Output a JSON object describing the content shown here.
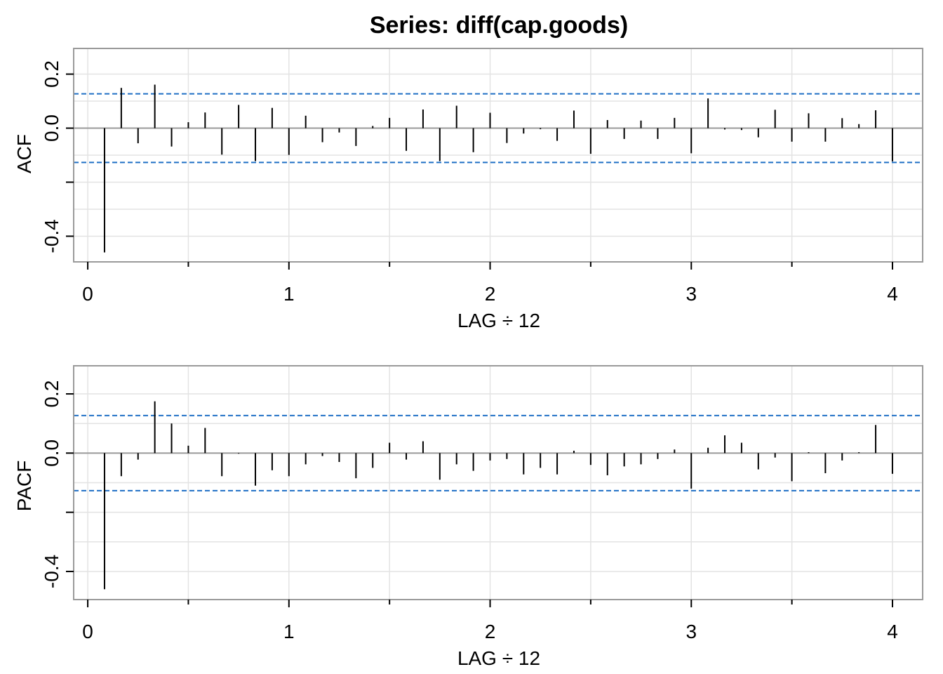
{
  "title": "Series:  diff(cap.goods)",
  "colors": {
    "bar": "#000000",
    "ci": "#1f6fc5",
    "grid": "#e3e3e3",
    "frame": "#9a9a9a",
    "zero": "#9a9a9a"
  },
  "chart_data": [
    {
      "type": "bar",
      "name": "acf-panel",
      "xlabel": "LAG ÷ 12",
      "ylabel": "ACF",
      "xlim": [
        -0.07,
        4.15
      ],
      "ylim": [
        -0.495,
        0.295
      ],
      "x_ticks": [
        0,
        1,
        2,
        3,
        4
      ],
      "x_tick_labels": [
        "0",
        "1",
        "2",
        "3",
        "4"
      ],
      "x_minor_ticks": [
        0.5,
        1.5,
        2.5,
        3.5
      ],
      "y_ticks": [
        -0.4,
        -0.2,
        0.0,
        0.2
      ],
      "y_tick_labels": [
        "-0.4",
        "",
        "0.0",
        "0.2"
      ],
      "y_grid": [
        -0.4,
        -0.3,
        -0.2,
        -0.1,
        0.0,
        0.1,
        0.2
      ],
      "x_grid": [
        0,
        0.5,
        1,
        1.5,
        2,
        2.5,
        3,
        3.5,
        4
      ],
      "ci": 0.127,
      "lag_step": 0.08333,
      "values": [
        -0.46,
        0.149,
        -0.056,
        0.161,
        -0.068,
        0.022,
        0.058,
        -0.098,
        0.086,
        -0.122,
        0.075,
        -0.099,
        0.046,
        -0.052,
        -0.016,
        -0.066,
        0.008,
        0.038,
        -0.084,
        0.069,
        -0.122,
        0.083,
        -0.089,
        0.057,
        -0.055,
        -0.02,
        -0.004,
        -0.047,
        0.065,
        -0.095,
        0.03,
        -0.04,
        0.028,
        -0.04,
        0.038,
        -0.093,
        0.11,
        -0.005,
        -0.007,
        -0.034,
        0.068,
        -0.05,
        0.055,
        -0.05,
        0.037,
        0.015,
        0.066,
        -0.123
      ]
    },
    {
      "type": "bar",
      "name": "pacf-panel",
      "xlabel": "LAG ÷ 12",
      "ylabel": "PACF",
      "xlim": [
        -0.07,
        4.15
      ],
      "ylim": [
        -0.495,
        0.295
      ],
      "x_ticks": [
        0,
        1,
        2,
        3,
        4
      ],
      "x_tick_labels": [
        "0",
        "1",
        "2",
        "3",
        "4"
      ],
      "x_minor_ticks": [
        0.5,
        1.5,
        2.5,
        3.5
      ],
      "y_ticks": [
        -0.4,
        -0.2,
        0.0,
        0.2
      ],
      "y_tick_labels": [
        "-0.4",
        "",
        "0.0",
        "0.2"
      ],
      "y_grid": [
        -0.4,
        -0.3,
        -0.2,
        -0.1,
        0.0,
        0.1,
        0.2
      ],
      "x_grid": [
        0,
        0.5,
        1,
        1.5,
        2,
        2.5,
        3,
        3.5,
        4
      ],
      "ci": 0.127,
      "lag_step": 0.08333,
      "values": [
        -0.46,
        -0.078,
        -0.022,
        0.175,
        0.1,
        0.025,
        0.085,
        -0.078,
        -0.002,
        -0.11,
        -0.058,
        -0.078,
        -0.038,
        -0.01,
        -0.03,
        -0.085,
        -0.05,
        0.035,
        -0.022,
        0.04,
        -0.09,
        -0.038,
        -0.06,
        -0.025,
        -0.02,
        -0.072,
        -0.05,
        -0.072,
        0.008,
        -0.04,
        -0.075,
        -0.045,
        -0.038,
        -0.02,
        0.012,
        -0.12,
        0.018,
        0.06,
        0.035,
        -0.055,
        -0.015,
        -0.095,
        0.003,
        -0.068,
        -0.025,
        0.003,
        0.095,
        -0.07
      ]
    }
  ]
}
